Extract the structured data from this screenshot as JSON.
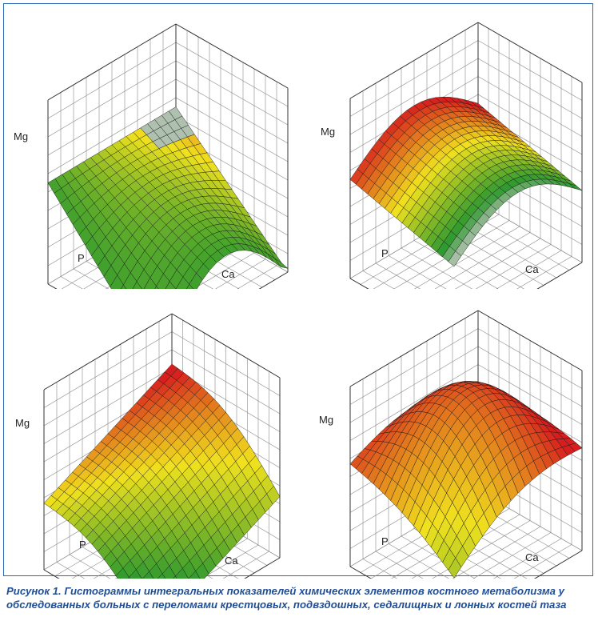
{
  "chart_data": [
    {
      "type": "surface",
      "xlabel": "Ca",
      "ylabel": "P",
      "zlabel": "Mg",
      "shape": "saddle-decline-green",
      "z_range": [
        0,
        1
      ],
      "colormap": [
        "#c8c8c8",
        "#2f9a2f",
        "#d61e1e"
      ]
    },
    {
      "type": "surface",
      "xlabel": "Ca",
      "ylabel": "P",
      "zlabel": "Mg",
      "shape": "ridge-red-to-green",
      "z_range": [
        0,
        1
      ],
      "colormap": [
        "#c8c8c8",
        "#2f9a2f",
        "#d61e1e"
      ]
    },
    {
      "type": "surface",
      "xlabel": "Ca",
      "ylabel": "P",
      "zlabel": "Mg",
      "shape": "tilted-plane-red-yellow-green",
      "z_range": [
        0,
        1
      ],
      "colormap": [
        "#c8c8c8",
        "#2f9a2f",
        "#d61e1e"
      ]
    },
    {
      "type": "surface",
      "xlabel": "Ca",
      "ylabel": "P",
      "zlabel": "Mg",
      "shape": "dome-red",
      "z_range": [
        0,
        1
      ],
      "colormap": [
        "#c8c8c8",
        "#2f9a2f",
        "#d61e1e"
      ]
    }
  ],
  "caption": "Рисунок 1. Гистограммы интегральных показателей химических элементов костного метаболизма у обследованных больных с переломами крестцовых, подвздошных, седалищных и лонных костей таза"
}
